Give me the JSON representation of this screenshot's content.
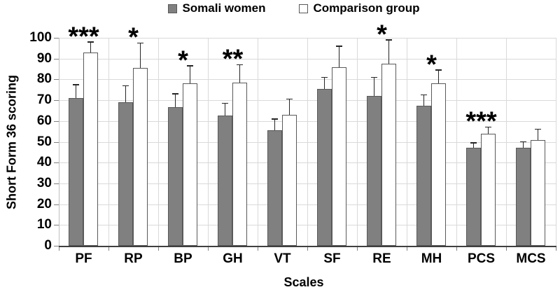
{
  "chart_data": {
    "type": "bar",
    "title": "",
    "xlabel": "Scales",
    "ylabel": "Short Form 36 scoring",
    "ylim": [
      0,
      100
    ],
    "yticks": [
      0,
      10,
      20,
      30,
      40,
      50,
      60,
      70,
      80,
      90,
      100
    ],
    "grid": true,
    "legend_position": "top-center",
    "categories": [
      "PF",
      "RP",
      "BP",
      "GH",
      "VT",
      "SF",
      "RE",
      "MH",
      "PCS",
      "MCS"
    ],
    "series": [
      {
        "name": "Somali women",
        "fill": "#808080",
        "border": "#595959",
        "values": [
          71,
          69,
          66.5,
          62.5,
          55.5,
          75.5,
          72,
          67.5,
          47,
          47
        ],
        "errors": [
          6.5,
          8,
          6.5,
          6,
          5.5,
          5.5,
          9,
          5,
          2.5,
          3
        ]
      },
      {
        "name": "Comparison group",
        "fill": "#ffffff",
        "border": "#595959",
        "values": [
          93,
          85.5,
          78,
          78.5,
          63,
          86,
          87.5,
          78,
          54,
          51
        ],
        "errors": [
          5,
          12,
          8.5,
          8.5,
          7.5,
          10,
          11.5,
          6.5,
          3,
          5
        ]
      }
    ],
    "significance": [
      "***",
      "*",
      "*",
      "**",
      "",
      "",
      "*",
      "*",
      "***",
      ""
    ],
    "colors": {
      "grid": "#d9d9d9",
      "axis_y": "#bfbfbf",
      "axis_x": "#3f3f3f",
      "tick": "#7f7f7f",
      "error_bar": "#262626",
      "text": "#000000"
    }
  }
}
